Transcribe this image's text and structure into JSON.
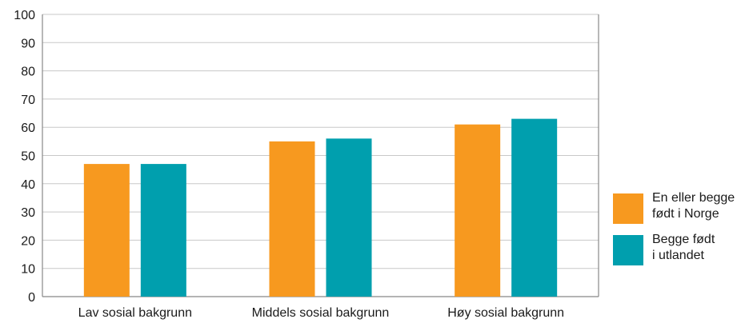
{
  "chart_data": {
    "type": "bar",
    "title": "",
    "xlabel": "",
    "ylabel": "",
    "ylim": [
      0,
      100
    ],
    "yticks": [
      0,
      10,
      20,
      30,
      40,
      50,
      60,
      70,
      80,
      90,
      100
    ],
    "grid": true,
    "legend_position": "right",
    "categories": [
      "Lav sosial bakgrunn",
      "Middels sosial bakgrunn",
      "Høy sosial bakgrunn"
    ],
    "series": [
      {
        "name": "En eller begge\nfødt i Norge",
        "color": "#f7991f",
        "values": [
          47,
          55,
          61
        ]
      },
      {
        "name": "Begge født\ni utlandet",
        "color": "#009fae",
        "values": [
          47,
          56,
          63
        ]
      }
    ]
  }
}
